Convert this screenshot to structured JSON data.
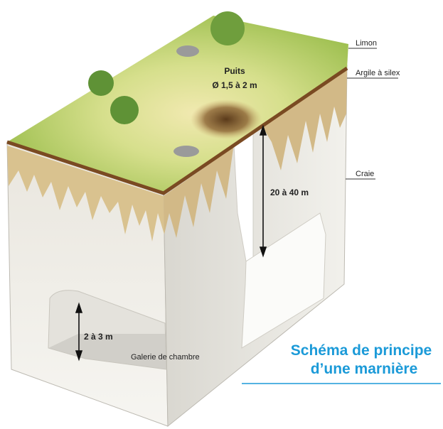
{
  "layers": [
    {
      "label": "Limon"
    },
    {
      "label": "Argile à silex"
    },
    {
      "label": "Craie"
    }
  ],
  "shaft": {
    "label": "Puits",
    "diameter": "Ø 1,5 à 2 m",
    "depth": "20 à 40 m"
  },
  "gallery": {
    "label": "Galerie de chambre",
    "height": "2 à 3 m"
  },
  "title": {
    "line1": "Schéma de principe",
    "line2": "d’une marnière"
  }
}
